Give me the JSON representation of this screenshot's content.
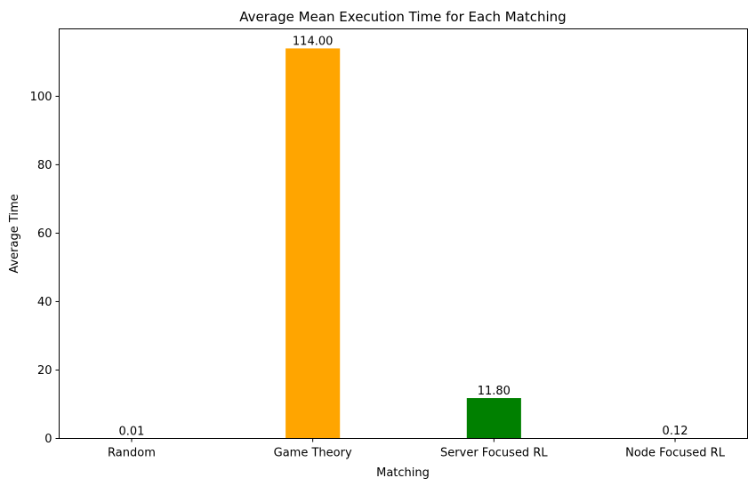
{
  "chart_data": {
    "type": "bar",
    "title": "Average Mean Execution Time for Each Matching",
    "xlabel": "Matching",
    "ylabel": "Average Time",
    "categories": [
      "Random",
      "Game Theory",
      "Server Focused RL",
      "Node Focused RL"
    ],
    "values": [
      0.01,
      114.0,
      11.8,
      0.12
    ],
    "value_labels": [
      "0.01",
      "114.00",
      "11.80",
      "0.12"
    ],
    "colors": [
      "#1f77b4",
      "#ffa500",
      "#008000",
      "#ff0000"
    ],
    "ylim": [
      0,
      119.7
    ],
    "yticks": [
      0,
      20,
      40,
      60,
      80,
      100
    ],
    "grid": false,
    "legend": "none"
  }
}
